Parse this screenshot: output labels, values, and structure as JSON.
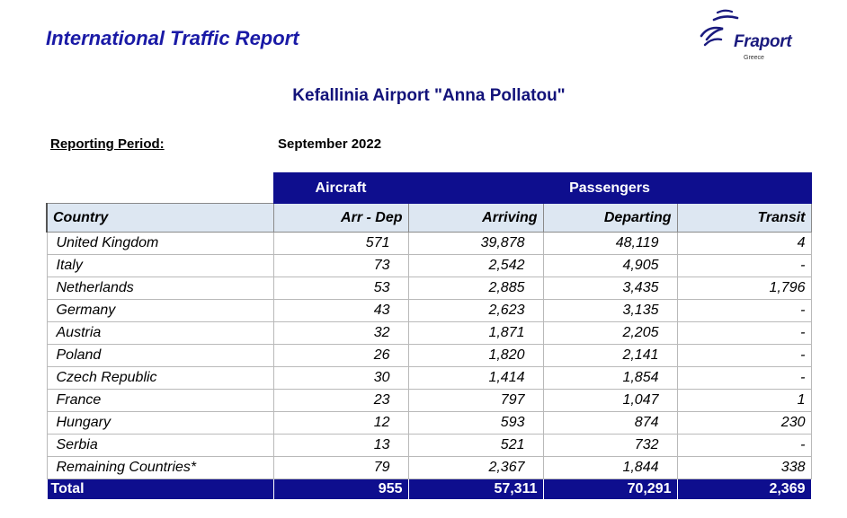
{
  "header": {
    "title": "International Traffic Report",
    "logo_name": "Fraport",
    "logo_sub": "Greece",
    "brand_color": "#1a1aa6"
  },
  "airport": "Kefallinia Airport \"Anna Pollatou\"",
  "period": {
    "label": "Reporting Period:",
    "value": "September 2022"
  },
  "table": {
    "group_headers": {
      "aircraft": "Aircraft",
      "passengers": "Passengers"
    },
    "columns": [
      "Country",
      "Arr - Dep",
      "Arriving",
      "Departing",
      "Transit"
    ],
    "rows": [
      [
        "United Kingdom",
        "571",
        "39,878",
        "48,119",
        "4"
      ],
      [
        "Italy",
        "73",
        "2,542",
        "4,905",
        "-"
      ],
      [
        "Netherlands",
        "53",
        "2,885",
        "3,435",
        "1,796"
      ],
      [
        "Germany",
        "43",
        "2,623",
        "3,135",
        "-"
      ],
      [
        "Austria",
        "32",
        "1,871",
        "2,205",
        "-"
      ],
      [
        "Poland",
        "26",
        "1,820",
        "2,141",
        "-"
      ],
      [
        "Czech Republic",
        "30",
        "1,414",
        "1,854",
        "-"
      ],
      [
        "France",
        "23",
        "797",
        "1,047",
        "1"
      ],
      [
        "Hungary",
        "12",
        "593",
        "874",
        "230"
      ],
      [
        "Serbia",
        "13",
        "521",
        "732",
        "-"
      ],
      [
        "Remaining Countries*",
        "79",
        "2,367",
        "1,844",
        "338"
      ]
    ],
    "total": [
      "Total",
      "955",
      "57,311",
      "70,291",
      "2,369"
    ],
    "header_color": "#0e0e8e",
    "subheader_color": "#dde7f2"
  }
}
